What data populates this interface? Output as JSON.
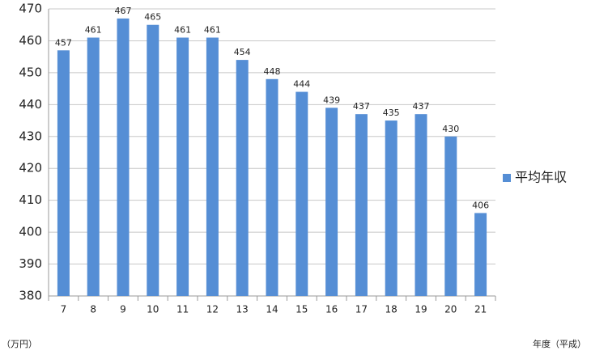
{
  "chart_data": {
    "type": "bar",
    "xlabel": "年度（平成）",
    "ylabel": "（万円）",
    "categories": [
      "7",
      "8",
      "9",
      "10",
      "11",
      "12",
      "13",
      "14",
      "15",
      "16",
      "17",
      "18",
      "19",
      "20",
      "21"
    ],
    "series": [
      {
        "name": "平均年収",
        "color": "#558ed5",
        "values": [
          457,
          461,
          467,
          465,
          461,
          461,
          454,
          448,
          444,
          439,
          437,
          435,
          437,
          430,
          406
        ]
      }
    ],
    "ylim": [
      380,
      470
    ],
    "yticks": [
      380,
      390,
      400,
      410,
      420,
      430,
      440,
      450,
      460,
      470
    ],
    "grid": true,
    "legend": "right",
    "data_labels": true
  }
}
